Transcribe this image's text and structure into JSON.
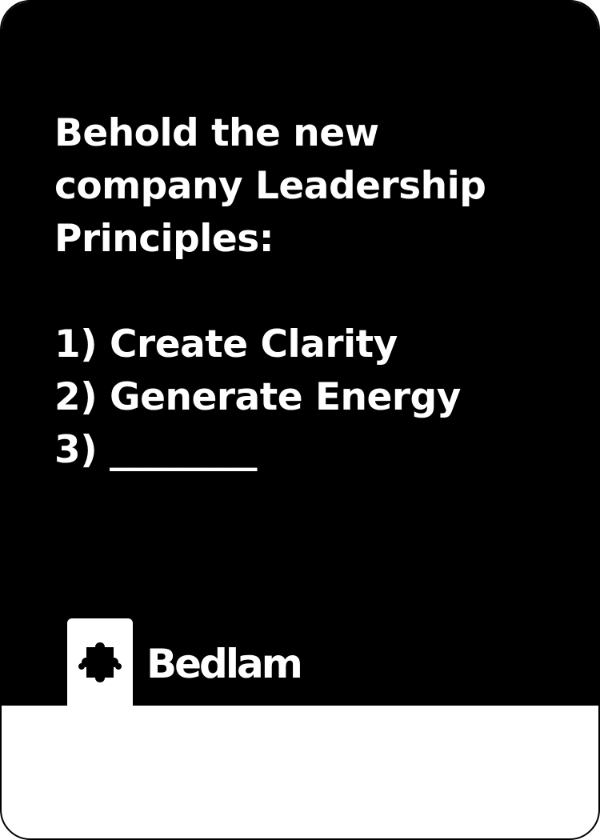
{
  "card": {
    "prompt": "Behold the new\ncompany Leadership\nPrinciples:\n\n1) Create Clarity\n2) Generate Energy\n3) ________"
  },
  "brand": {
    "name": "Bedlam",
    "icon": "puzzle-piece-icon"
  },
  "colors": {
    "card_background": "#000000",
    "text": "#ffffff",
    "bottom_band": "#ffffff"
  }
}
